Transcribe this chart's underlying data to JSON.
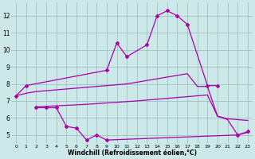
{
  "bg_color": "#cce8e8",
  "line_color": "#aa00aa",
  "grid_color": "#99bbbb",
  "xlabel": "Windchill (Refroidissement éolien,°C)",
  "ylabel_vals": [
    5,
    6,
    7,
    8,
    9,
    10,
    11,
    12
  ],
  "ylim": [
    4.5,
    12.8
  ],
  "xlim": [
    -0.5,
    23.5
  ],
  "s1_x": [
    0,
    1,
    9,
    10,
    11,
    13,
    14,
    15,
    16,
    17,
    19,
    20
  ],
  "s1_y": [
    7.3,
    7.9,
    8.8,
    10.4,
    9.6,
    10.3,
    12.0,
    12.3,
    12.0,
    11.5,
    7.9,
    7.9
  ],
  "s2_x": [
    2,
    3,
    4,
    5,
    6,
    7,
    8,
    9,
    22,
    23
  ],
  "s2_y": [
    6.6,
    6.6,
    6.6,
    5.5,
    5.4,
    4.7,
    5.0,
    4.7,
    5.0,
    5.2
  ],
  "smooth_upper_x": [
    0,
    1,
    2,
    3,
    4,
    5,
    6,
    7,
    8,
    9,
    10,
    11,
    12,
    13,
    14,
    15,
    16,
    17,
    18,
    19,
    20,
    21,
    22,
    23
  ],
  "smooth_upper_y": [
    7.3,
    7.45,
    7.55,
    7.6,
    7.65,
    7.7,
    7.75,
    7.8,
    7.85,
    7.9,
    7.95,
    8.0,
    8.1,
    8.2,
    8.3,
    8.4,
    8.5,
    8.6,
    7.85,
    7.85,
    6.1,
    5.95,
    5.9,
    5.85
  ],
  "smooth_lower_x": [
    2,
    3,
    4,
    5,
    6,
    7,
    8,
    9,
    10,
    11,
    12,
    13,
    14,
    15,
    16,
    17,
    18,
    19,
    20,
    21,
    22,
    23
  ],
  "smooth_lower_y": [
    6.65,
    6.68,
    6.71,
    6.74,
    6.77,
    6.8,
    6.84,
    6.88,
    6.92,
    6.96,
    7.0,
    7.05,
    7.1,
    7.15,
    7.2,
    7.25,
    7.3,
    7.35,
    6.1,
    5.9,
    5.0,
    5.15
  ]
}
